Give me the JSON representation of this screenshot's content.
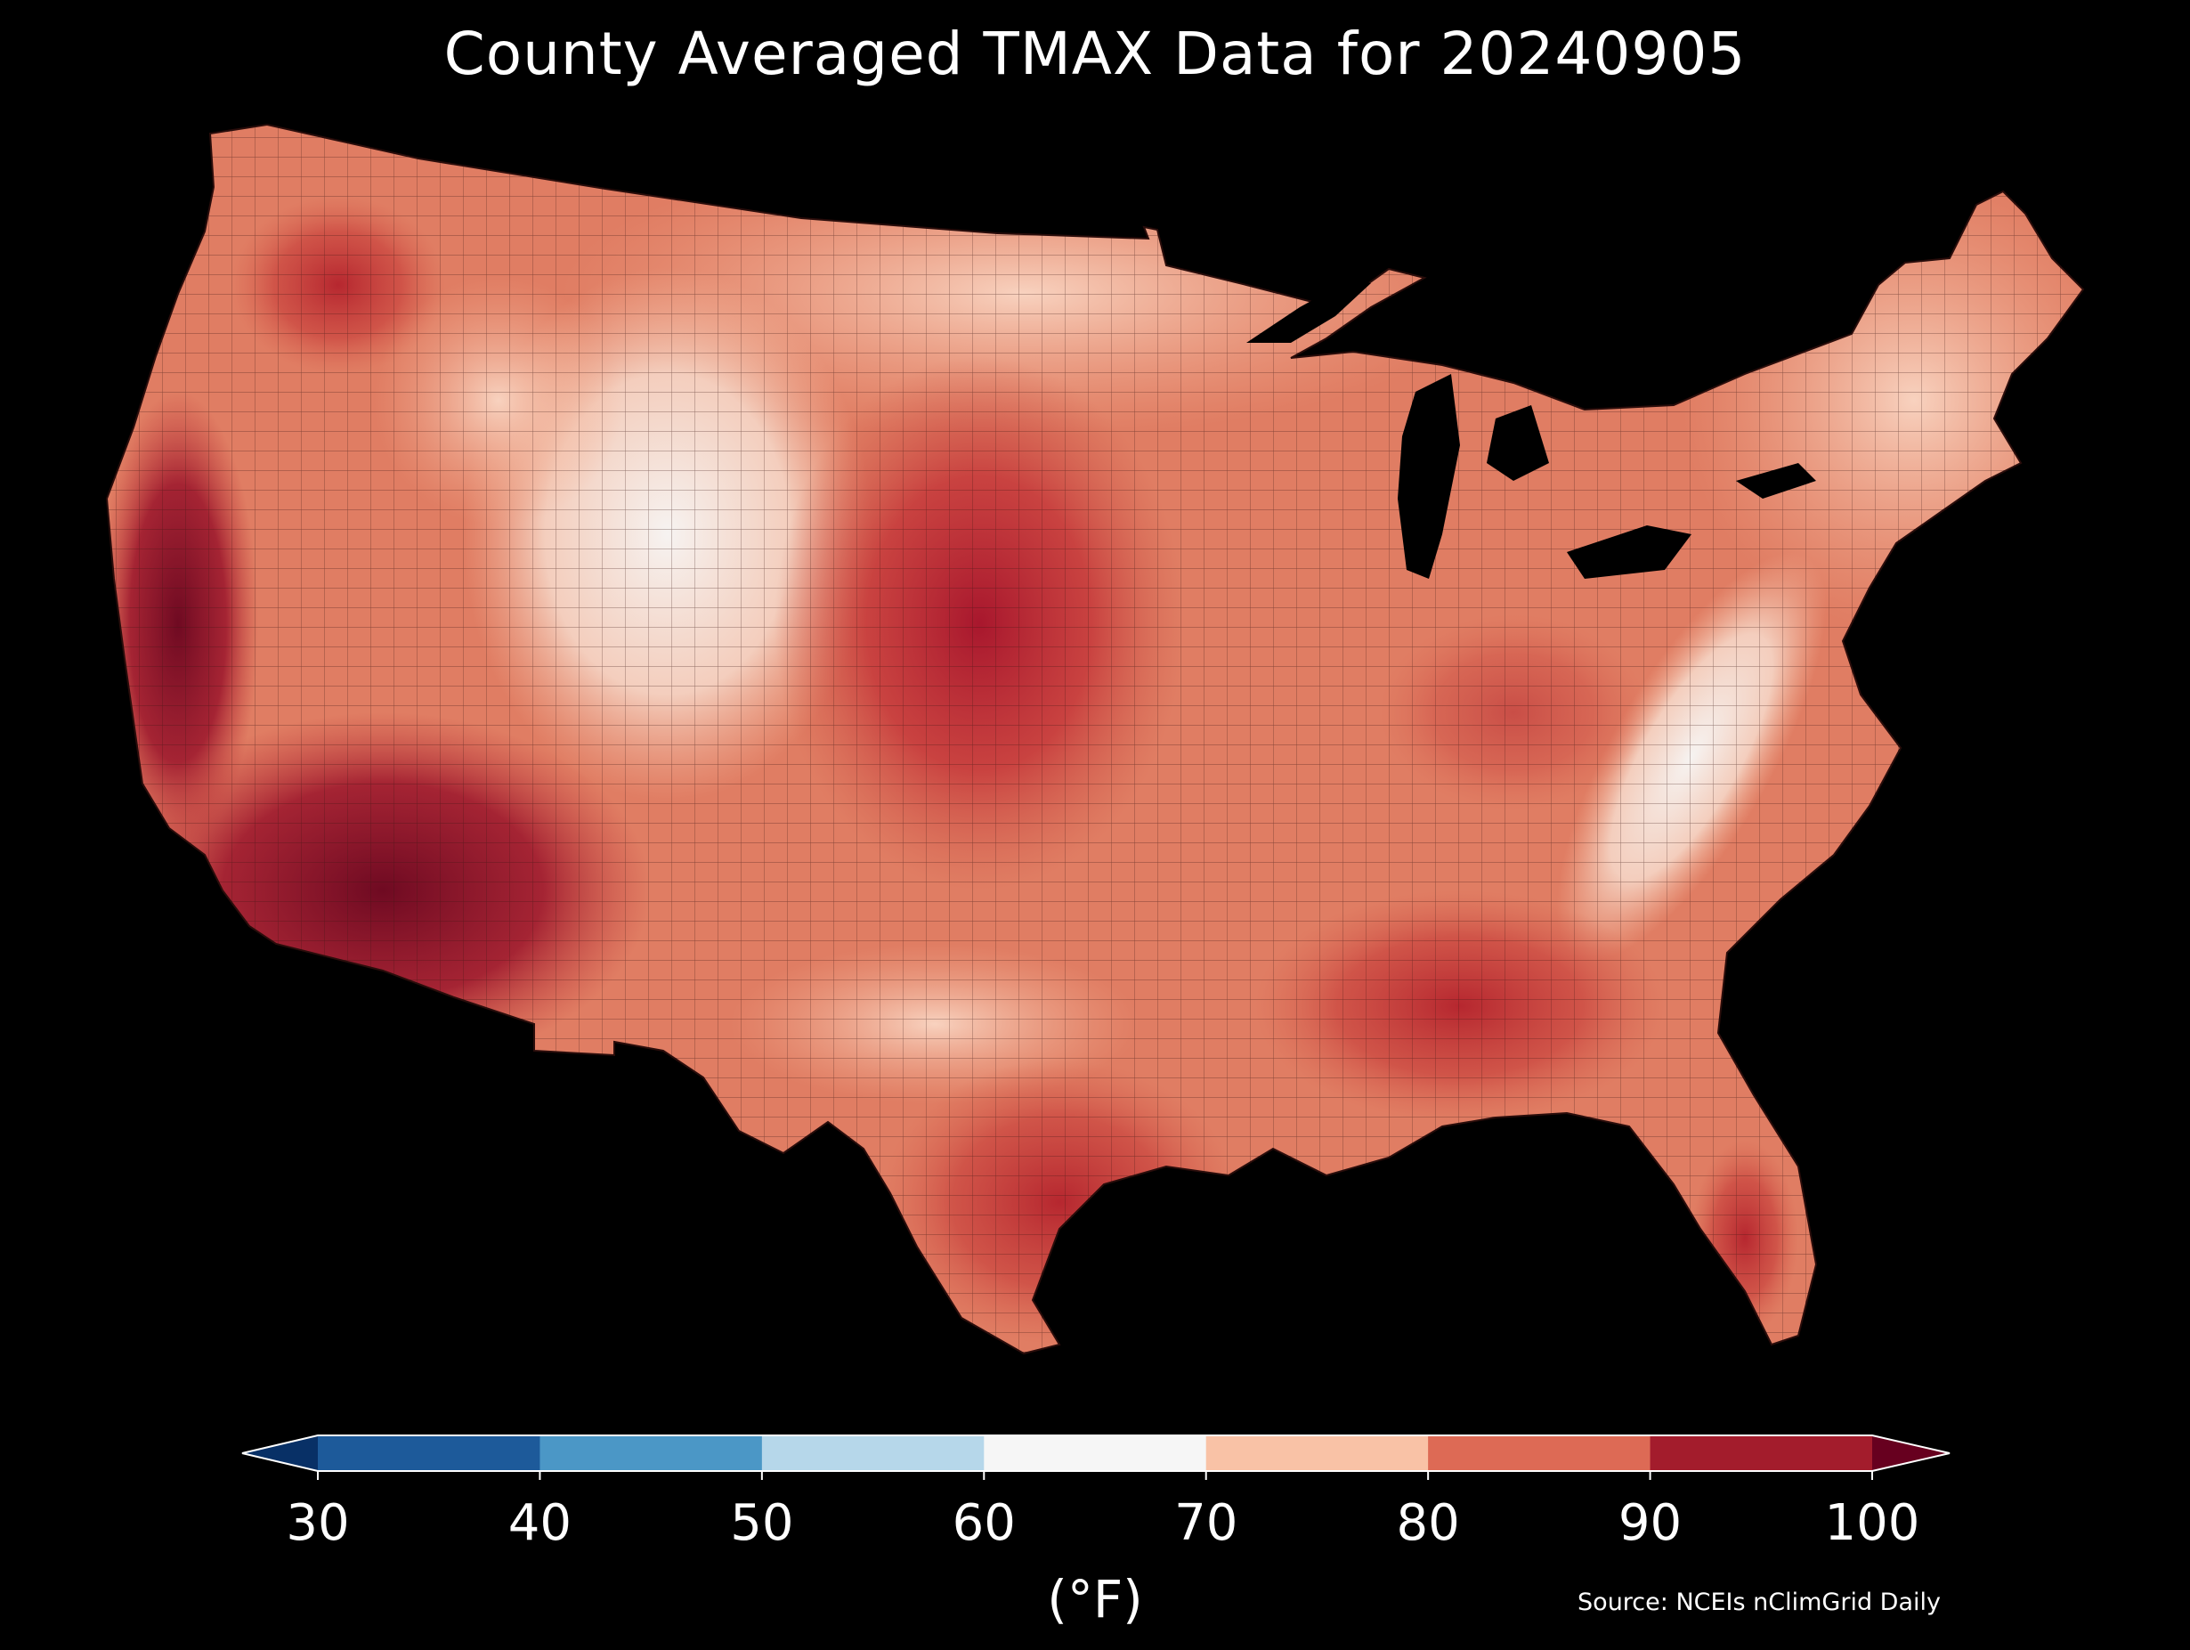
{
  "title": "County Averaged TMAX Data for 20240905",
  "colorbar": {
    "ticks": [
      "30",
      "40",
      "50",
      "60",
      "70",
      "80",
      "90",
      "100"
    ],
    "tick_values": [
      30,
      40,
      50,
      60,
      70,
      80,
      90,
      100
    ],
    "colors": [
      "#1d5a9a",
      "#4b97c6",
      "#b6d7ea",
      "#f6f6f6",
      "#f9c2a6",
      "#dd6a55",
      "#a31c2c"
    ],
    "under_color": "#083066",
    "over_color": "#67001f",
    "units": "(°F)"
  },
  "source": "Source: NCEIs nClimGrid Daily",
  "colors": {
    "background": "#000000",
    "land_base": "#e2846a",
    "lakes": "#000000"
  }
}
